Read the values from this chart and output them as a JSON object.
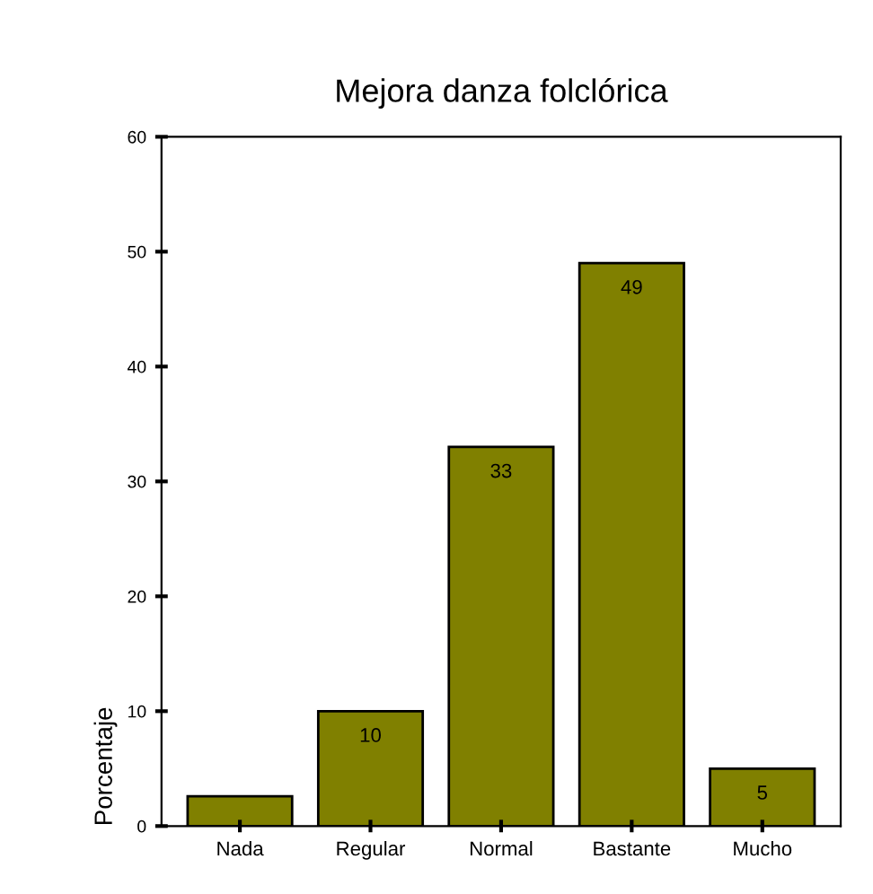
{
  "chart_data": {
    "type": "bar",
    "title": "Mejora danza folclórica",
    "ylabel": "Porcentaje",
    "categories": [
      "Nada",
      "Regular",
      "Normal",
      "Bastante",
      "Mucho"
    ],
    "values": [
      2.6,
      10,
      33,
      49,
      5
    ],
    "value_labels": [
      null,
      "10",
      "33",
      "49",
      "5"
    ],
    "color": "#808000",
    "ylim": [
      0,
      60
    ],
    "yticks": [
      0,
      10,
      20,
      30,
      40,
      50,
      60
    ],
    "grid": false
  }
}
